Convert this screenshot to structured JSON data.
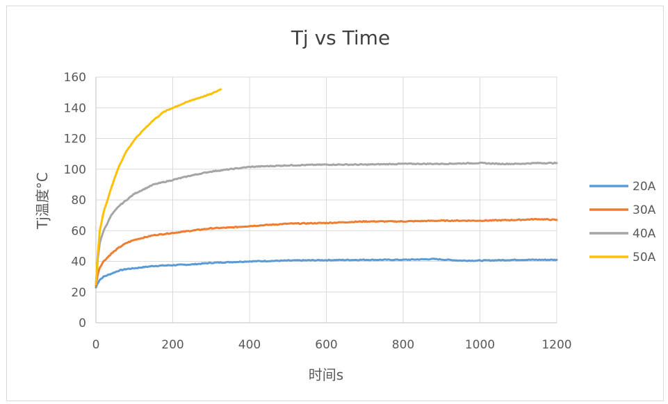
{
  "chart_data": {
    "type": "line",
    "title": "Tj vs Time",
    "xlabel": "时间s",
    "ylabel": "Tj温度°C",
    "xlim": [
      0,
      1200
    ],
    "ylim": [
      0,
      160
    ],
    "xticks": [
      0,
      200,
      400,
      600,
      800,
      1000,
      1200
    ],
    "yticks": [
      0,
      20,
      40,
      60,
      80,
      100,
      120,
      140,
      160
    ],
    "grid": true,
    "legend_position": "right",
    "series": [
      {
        "name": "20A",
        "color": "#5b9bd5",
        "x": [
          0,
          5,
          10,
          20,
          40,
          60,
          80,
          100,
          150,
          200,
          250,
          300,
          400,
          500,
          600,
          700,
          800,
          880,
          950,
          1000,
          1100,
          1200
        ],
        "y": [
          23,
          26,
          28,
          30,
          32,
          34,
          35,
          35.5,
          37,
          37.5,
          38,
          39,
          40,
          40.5,
          40.8,
          41,
          41,
          41.5,
          40.5,
          40.5,
          41,
          41
        ]
      },
      {
        "name": "30A",
        "color": "#ed7d31",
        "x": [
          0,
          5,
          10,
          20,
          40,
          60,
          80,
          100,
          150,
          200,
          250,
          300,
          350,
          400,
          500,
          600,
          700,
          800,
          900,
          1000,
          1100,
          1150,
          1200
        ],
        "y": [
          24,
          32,
          36,
          40,
          45,
          49,
          52,
          54,
          57,
          58.5,
          60,
          61.5,
          62,
          63,
          64.5,
          65,
          66,
          66,
          66.5,
          66.5,
          67,
          67.5,
          67
        ]
      },
      {
        "name": "40A",
        "color": "#a5a5a5",
        "x": [
          0,
          5,
          10,
          20,
          40,
          60,
          80,
          100,
          150,
          200,
          250,
          300,
          350,
          400,
          500,
          600,
          700,
          800,
          900,
          1000,
          1050,
          1100,
          1150,
          1200
        ],
        "y": [
          25,
          42,
          52,
          60,
          70,
          76,
          80,
          84,
          90,
          93,
          96,
          98.5,
          100,
          101.5,
          102.5,
          103,
          103,
          103.5,
          103.5,
          104,
          103.5,
          103.5,
          104,
          104
        ]
      },
      {
        "name": "50A",
        "color": "#ffc000",
        "x": [
          0,
          5,
          10,
          20,
          40,
          60,
          80,
          100,
          125,
          150,
          175,
          200,
          250,
          300,
          325
        ],
        "y": [
          25,
          45,
          60,
          72,
          88,
          102,
          112,
          119,
          126,
          132,
          137,
          140,
          145,
          149,
          152
        ]
      }
    ]
  }
}
